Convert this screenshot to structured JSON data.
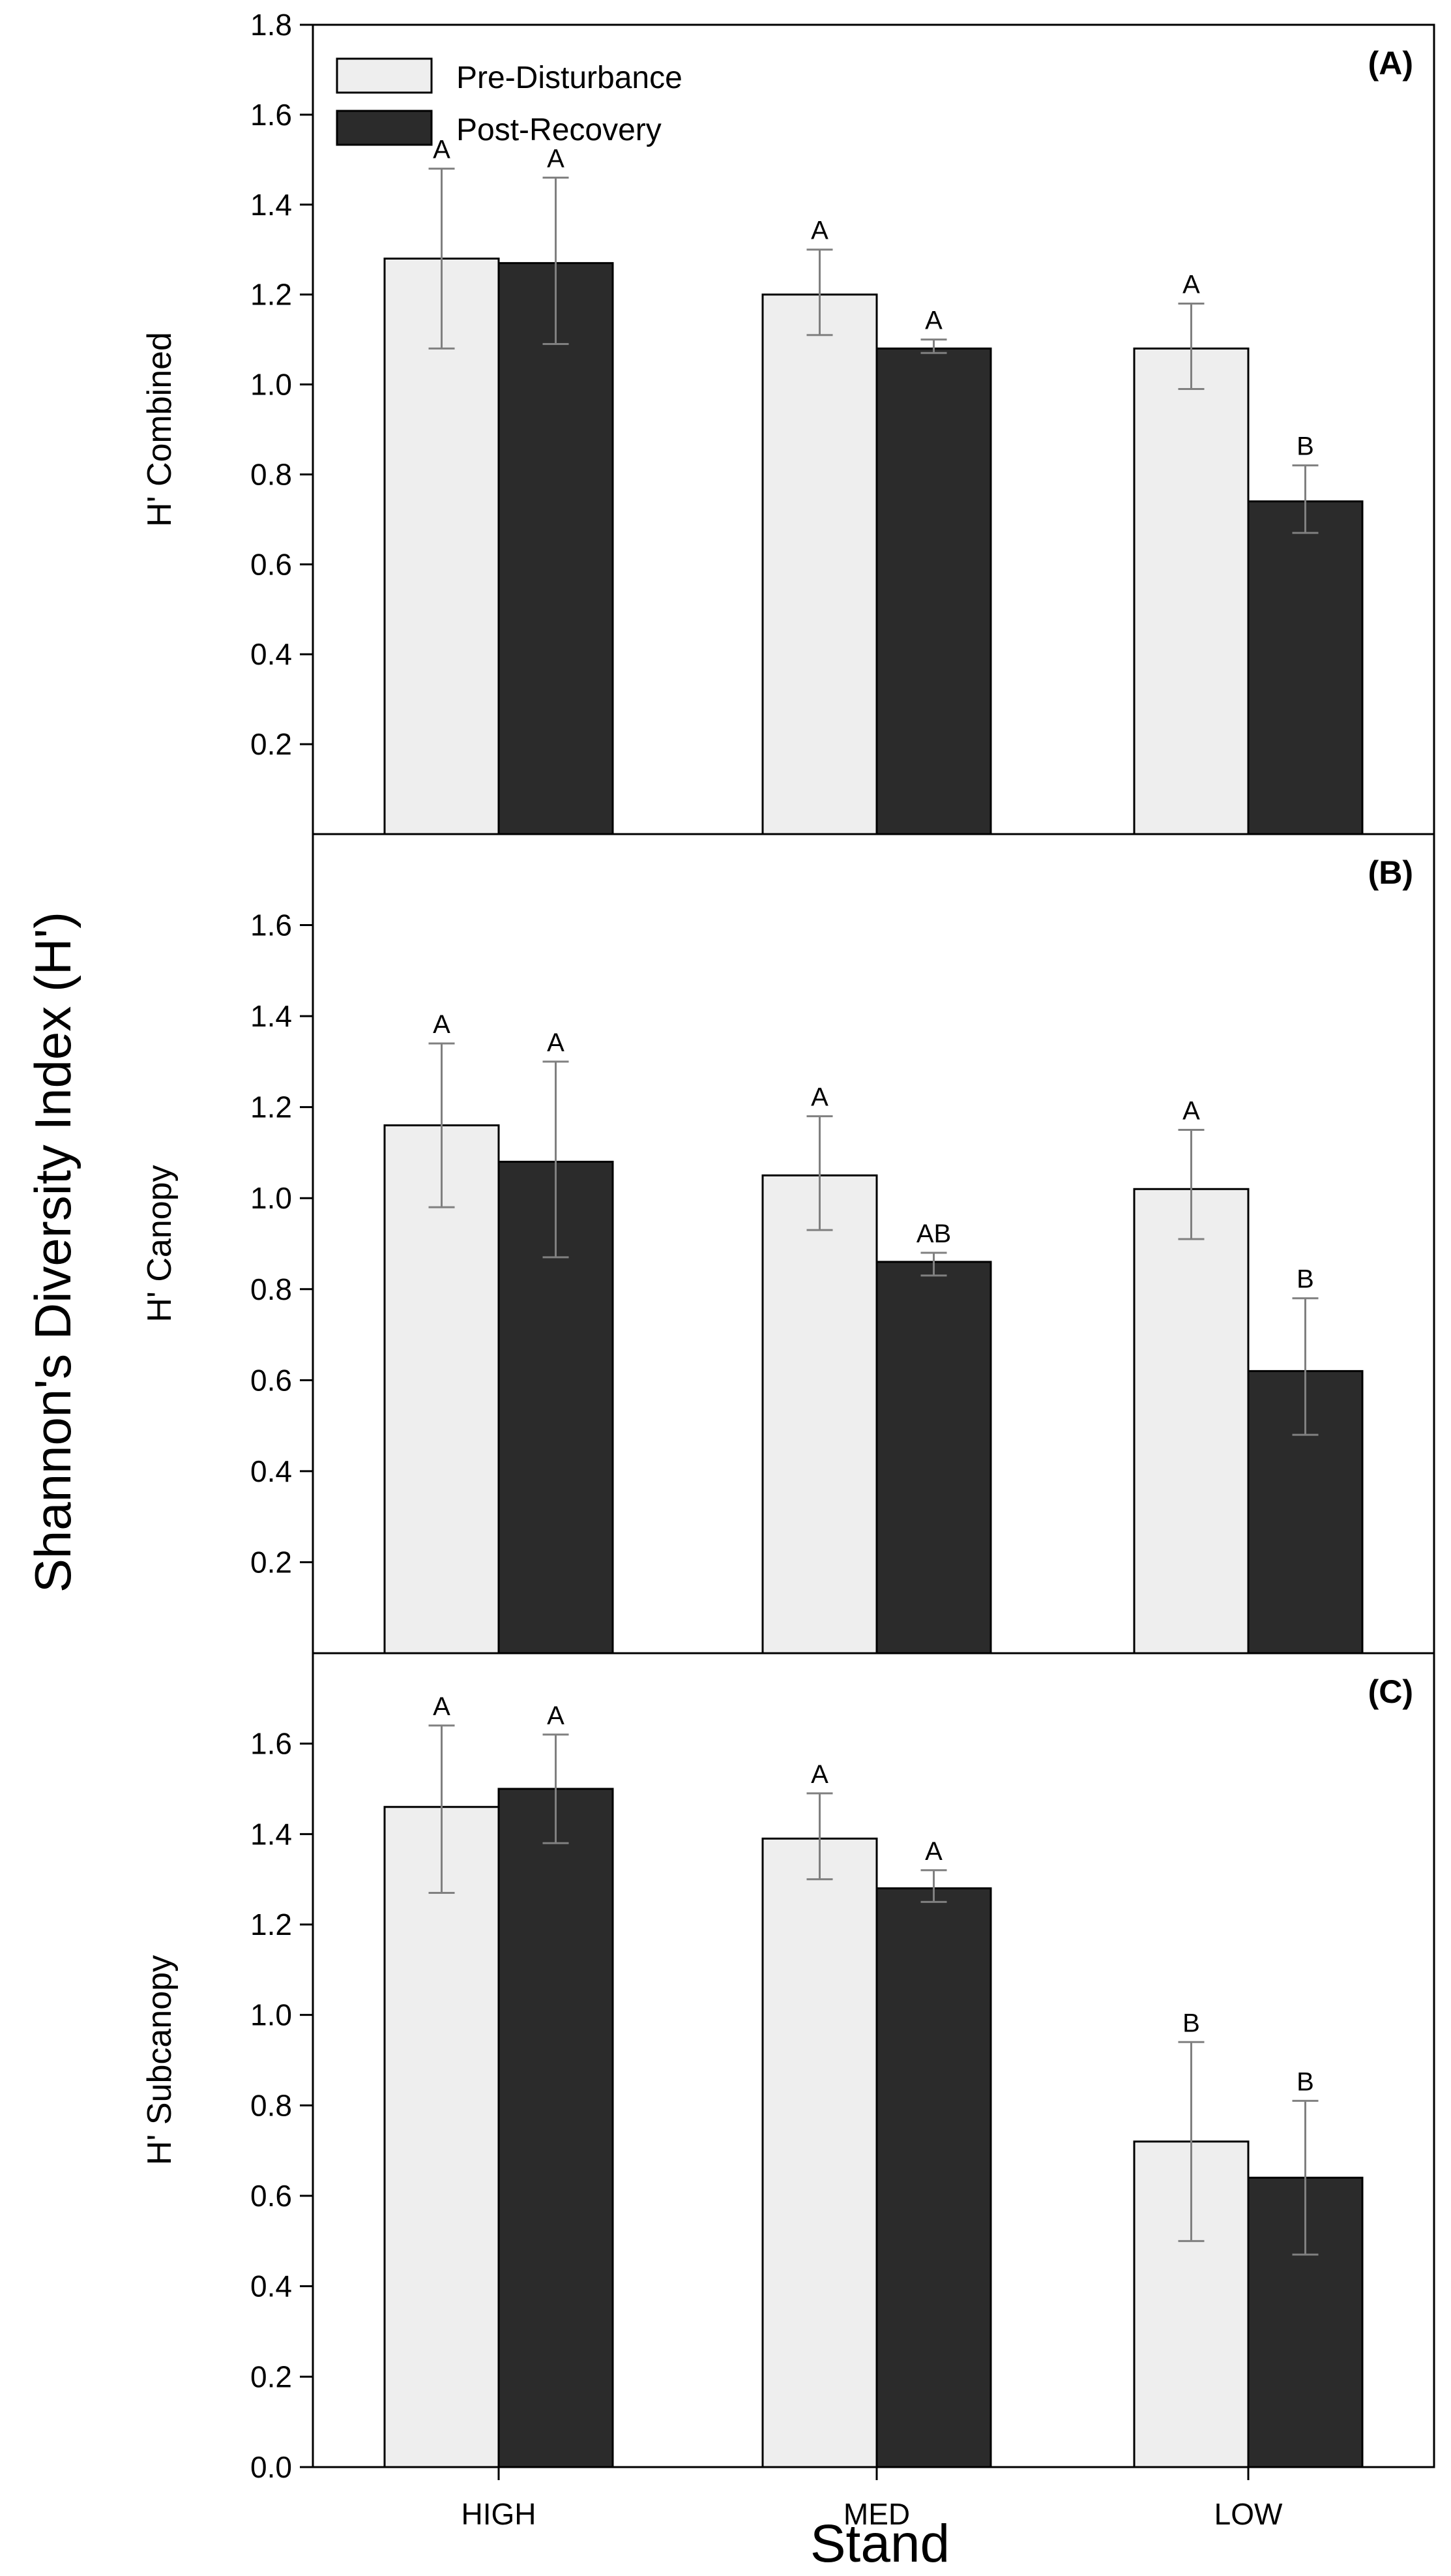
{
  "chart_data": {
    "type": "bar",
    "y_axis_title": "Shannon's Diversity Index (H')",
    "x_axis_title": "Stand",
    "categories": [
      "HIGH",
      "MED",
      "LOW"
    ],
    "legend": {
      "placement": "top-left",
      "entries": [
        {
          "name": "Pre-Disturbance",
          "color": "#eeeeee"
        },
        {
          "name": "Post-Recovery",
          "color": "#2b2b2b"
        }
      ]
    },
    "series_colors": {
      "pre": "#eeeeee",
      "post": "#2b2b2b",
      "error_bar": "#808080"
    },
    "panels": [
      {
        "panel_label": "(A)",
        "ylabel": "H' Combined",
        "ylim": [
          0,
          1.8
        ],
        "yticks": [
          "1.8",
          "1.6",
          "1.4",
          "1.2",
          "1.0",
          "0.8",
          "0.6",
          "0.4",
          "0.2"
        ],
        "series": [
          {
            "name": "Pre-Disturbance",
            "values": [
              1.28,
              1.2,
              1.08
            ],
            "error_low": [
              1.08,
              1.11,
              0.99
            ],
            "error_high": [
              1.48,
              1.3,
              1.18
            ],
            "sig": [
              "A",
              "A",
              "A"
            ]
          },
          {
            "name": "Post-Recovery",
            "values": [
              1.27,
              1.08,
              0.74
            ],
            "error_low": [
              1.09,
              1.07,
              0.67
            ],
            "error_high": [
              1.46,
              1.1,
              0.82
            ],
            "sig": [
              "A",
              "A",
              "B"
            ]
          }
        ]
      },
      {
        "panel_label": "(B)",
        "ylabel": "H' Canopy",
        "ylim": [
          0,
          1.8
        ],
        "yticks": [
          "1.6",
          "1.4",
          "1.2",
          "1.0",
          "0.8",
          "0.6",
          "0.4",
          "0.2"
        ],
        "series": [
          {
            "name": "Pre-Disturbance",
            "values": [
              1.16,
              1.05,
              1.02
            ],
            "error_low": [
              0.98,
              0.93,
              0.91
            ],
            "error_high": [
              1.34,
              1.18,
              1.15
            ],
            "sig": [
              "A",
              "A",
              "A"
            ]
          },
          {
            "name": "Post-Recovery",
            "values": [
              1.08,
              0.86,
              0.62
            ],
            "error_low": [
              0.87,
              0.83,
              0.48
            ],
            "error_high": [
              1.3,
              0.88,
              0.78
            ],
            "sig": [
              "A",
              "AB",
              "B"
            ]
          }
        ]
      },
      {
        "panel_label": "(C)",
        "ylabel": "H' Subcanopy",
        "ylim": [
          0,
          1.8
        ],
        "yticks": [
          "1.6",
          "1.4",
          "1.2",
          "1.0",
          "0.8",
          "0.6",
          "0.4",
          "0.2",
          "0.0"
        ],
        "series": [
          {
            "name": "Pre-Disturbance",
            "values": [
              1.46,
              1.39,
              0.72
            ],
            "error_low": [
              1.27,
              1.3,
              0.5
            ],
            "error_high": [
              1.64,
              1.49,
              0.94
            ],
            "sig": [
              "A",
              "A",
              "B"
            ]
          },
          {
            "name": "Post-Recovery",
            "values": [
              1.5,
              1.28,
              0.64
            ],
            "error_low": [
              1.38,
              1.25,
              0.47
            ],
            "error_high": [
              1.62,
              1.32,
              0.81
            ],
            "sig": [
              "A",
              "A",
              "B"
            ]
          }
        ]
      }
    ]
  }
}
